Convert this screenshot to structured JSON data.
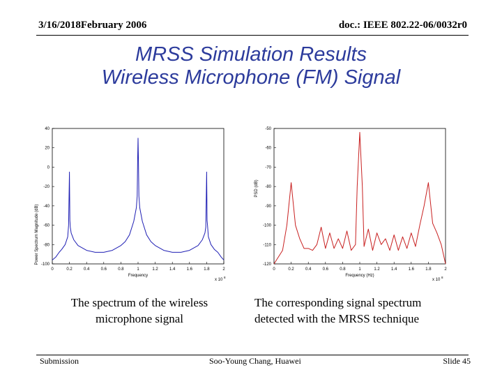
{
  "header": {
    "date": "3/16/2018February 2006",
    "doc_id": "doc.: IEEE 802.22-06/0032r0"
  },
  "title": {
    "line1": "MRSS Simulation Results",
    "line2": "Wireless Microphone (FM) Signal"
  },
  "chart_data": [
    {
      "type": "line",
      "xlabel": "Frequency",
      "ylabel": "Power Spectrum Magnitude (dB)",
      "x_multiplier_label": "x 10",
      "x_multiplier_exp": "8",
      "x_ticks": [
        "0",
        "0.2",
        "0.4",
        "0.6",
        "0.8",
        "1",
        "1.2",
        "1.4",
        "1.6",
        "1.8",
        "2"
      ],
      "y_ticks": [
        "40",
        "20",
        "0",
        "-20",
        "-40",
        "-60",
        "-80",
        "-100"
      ],
      "xlim": [
        0,
        2
      ],
      "ylim": [
        -100,
        40
      ],
      "color": "#1f1fb4",
      "series": [
        {
          "x": [
            0.0,
            0.04,
            0.08,
            0.11,
            0.15,
            0.18,
            0.19,
            0.2,
            0.205,
            0.21,
            0.22,
            0.25,
            0.3,
            0.4,
            0.5,
            0.6,
            0.7,
            0.8,
            0.85,
            0.9,
            0.95,
            0.98,
            0.99,
            0.995,
            1.0,
            1.005,
            1.01,
            1.02,
            1.05,
            1.1,
            1.15,
            1.2,
            1.3,
            1.4,
            1.5,
            1.6,
            1.7,
            1.75,
            1.78,
            1.79,
            1.8,
            1.805,
            1.81,
            1.82,
            1.85,
            1.89,
            1.93,
            1.97,
            2.0
          ],
          "y": [
            -96,
            -93,
            -88,
            -85,
            -80,
            -72,
            -60,
            -5,
            -55,
            -62,
            -68,
            -75,
            -81,
            -86,
            -88,
            -88,
            -86,
            -81,
            -77,
            -70,
            -56,
            -42,
            -30,
            5,
            30,
            5,
            -30,
            -42,
            -56,
            -70,
            -77,
            -81,
            -86,
            -88,
            -88,
            -86,
            -81,
            -75,
            -68,
            -62,
            -5,
            -55,
            -60,
            -72,
            -80,
            -85,
            -88,
            -93,
            -96
          ]
        }
      ]
    },
    {
      "type": "line",
      "xlabel": "Frequency (Hz)",
      "ylabel": "PSD (dB)",
      "x_multiplier_label": "x 10",
      "x_multiplier_exp": "8",
      "x_ticks": [
        "0",
        "0.2",
        "0.4",
        "0.6",
        "0.8",
        "1",
        "1.2",
        "1.4",
        "1.6",
        "1.8",
        "2"
      ],
      "y_ticks": [
        "-50",
        "-60",
        "-70",
        "-80",
        "-90",
        "-100",
        "-110",
        "-120"
      ],
      "xlim": [
        0,
        2
      ],
      "ylim": [
        -120,
        -50
      ],
      "color": "#c82020",
      "series": [
        {
          "x": [
            0.0,
            0.1,
            0.15,
            0.2,
            0.25,
            0.3,
            0.35,
            0.4,
            0.45,
            0.5,
            0.55,
            0.6,
            0.65,
            0.7,
            0.75,
            0.8,
            0.85,
            0.9,
            0.95,
            0.97,
            1.0,
            1.03,
            1.05,
            1.1,
            1.15,
            1.2,
            1.25,
            1.3,
            1.35,
            1.4,
            1.45,
            1.5,
            1.55,
            1.6,
            1.65,
            1.7,
            1.75,
            1.8,
            1.85,
            1.9,
            1.95,
            2.0
          ],
          "y": [
            -120,
            -113,
            -100,
            -78,
            -100,
            -107,
            -112,
            -112,
            -113,
            -110,
            -101,
            -112,
            -104,
            -112,
            -107,
            -112,
            -103,
            -113,
            -110,
            -80,
            -52,
            -80,
            -111,
            -102,
            -113,
            -104,
            -110,
            -107,
            -113,
            -105,
            -113,
            -106,
            -112,
            -104,
            -111,
            -100,
            -90,
            -78,
            -99,
            -104,
            -110,
            -120
          ]
        }
      ]
    }
  ],
  "captions": {
    "left": "The spectrum of the wireless microphone signal",
    "right": "The corresponding signal spectrum detected with the MRSS technique"
  },
  "footer": {
    "left": "Submission",
    "center": "Soo-Young Chang, Huawei",
    "right": "Slide 45"
  }
}
